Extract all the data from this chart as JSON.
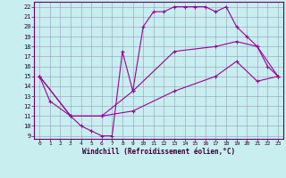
{
  "xlabel": "Windchill (Refroidissement éolien,°C)",
  "bg_color": "#c8eef0",
  "grid_color": "#9999bb",
  "line_color": "#990099",
  "xlim": [
    -0.5,
    23.5
  ],
  "ylim": [
    8.7,
    22.5
  ],
  "xticks": [
    0,
    1,
    2,
    3,
    4,
    5,
    6,
    7,
    8,
    9,
    10,
    11,
    12,
    13,
    14,
    15,
    16,
    17,
    18,
    19,
    20,
    21,
    22,
    23
  ],
  "yticks": [
    9,
    10,
    11,
    12,
    13,
    14,
    15,
    16,
    17,
    18,
    19,
    20,
    21,
    22
  ],
  "line1_x": [
    0,
    1,
    3,
    4,
    5,
    6,
    7,
    8,
    9,
    10,
    11,
    12,
    13,
    14,
    15,
    16,
    17,
    18,
    19,
    20,
    21,
    22,
    23
  ],
  "line1_y": [
    15,
    12.5,
    11,
    10,
    9.5,
    9,
    9,
    17.5,
    13.5,
    20,
    21.5,
    21.5,
    22,
    22,
    22,
    22,
    21.5,
    22,
    20,
    19,
    18,
    16,
    15
  ],
  "line2_x": [
    0,
    3,
    6,
    9,
    13,
    17,
    19,
    21,
    23
  ],
  "line2_y": [
    15,
    11,
    11,
    13.5,
    17.5,
    18,
    18.5,
    18,
    15
  ],
  "line3_x": [
    0,
    3,
    6,
    9,
    13,
    17,
    19,
    21,
    23
  ],
  "line3_y": [
    15,
    11,
    11,
    11.5,
    13.5,
    15,
    16.5,
    14.5,
    15
  ]
}
